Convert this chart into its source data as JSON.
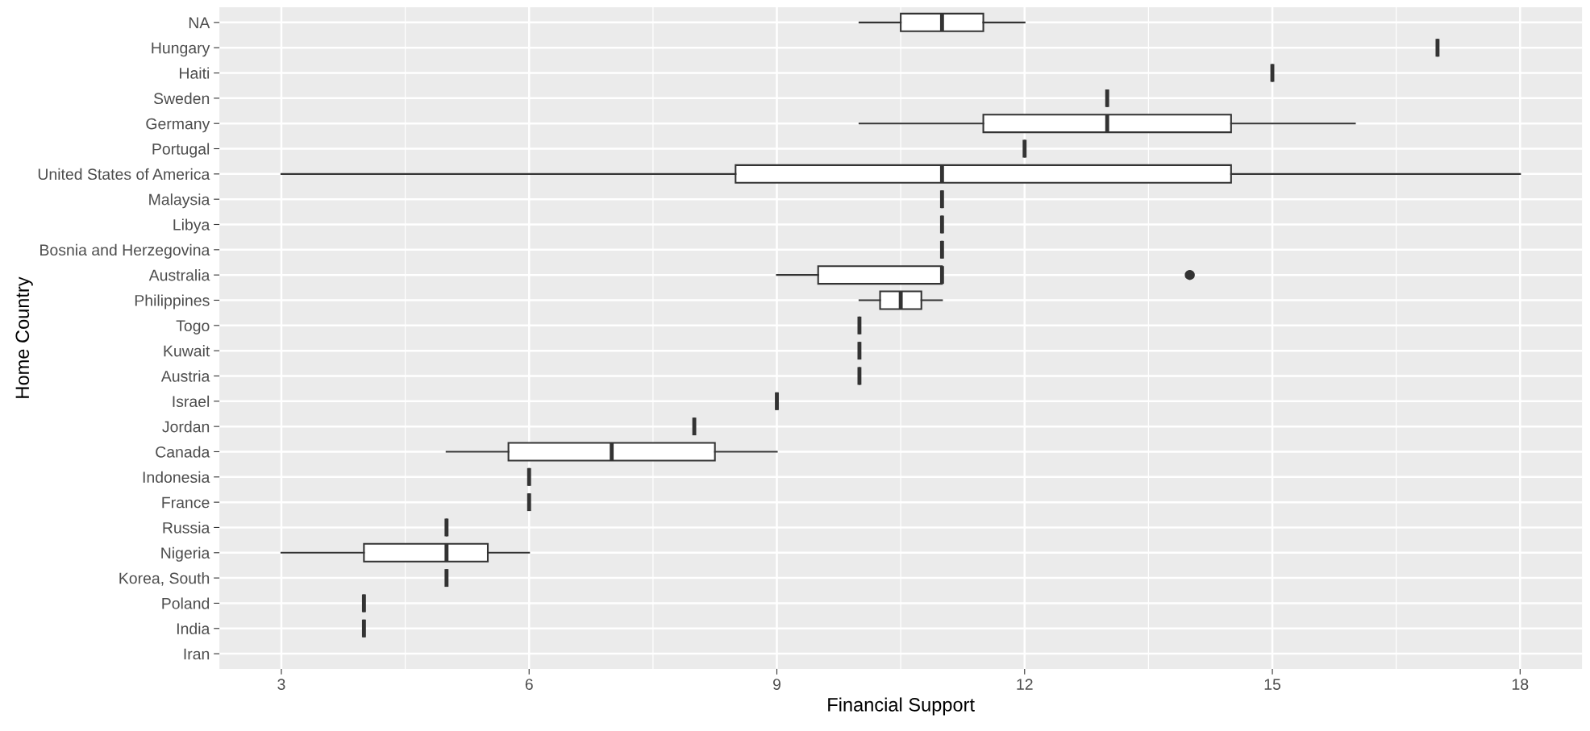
{
  "chart_data": {
    "type": "box",
    "orientation": "horizontal",
    "xlabel": "Financial Support",
    "ylabel": "Home Country",
    "categories": [
      "NA",
      "Hungary",
      "Haiti",
      "Sweden",
      "Germany",
      "Portugal",
      "United States of America",
      "Malaysia",
      "Libya",
      "Bosnia and Herzegovina",
      "Australia",
      "Philippines",
      "Togo",
      "Kuwait",
      "Austria",
      "Israel",
      "Jordan",
      "Canada",
      "Indonesia",
      "France",
      "Russia",
      "Nigeria",
      "Korea, South",
      "Poland",
      "India",
      "Iran"
    ],
    "boxes": [
      {
        "low": 10,
        "q1": 10.5,
        "median": 11,
        "q3": 11.5,
        "high": 12
      },
      {
        "low": 17,
        "q1": 17,
        "median": 17,
        "q3": 17,
        "high": 17
      },
      {
        "low": 15,
        "q1": 15,
        "median": 15,
        "q3": 15,
        "high": 15
      },
      {
        "low": 13,
        "q1": 13,
        "median": 13,
        "q3": 13,
        "high": 13
      },
      {
        "low": 10,
        "q1": 11.5,
        "median": 13,
        "q3": 14.5,
        "high": 16
      },
      {
        "low": 12,
        "q1": 12,
        "median": 12,
        "q3": 12,
        "high": 12
      },
      {
        "low": 3,
        "q1": 8.5,
        "median": 11,
        "q3": 14.5,
        "high": 18
      },
      {
        "low": 11,
        "q1": 11,
        "median": 11,
        "q3": 11,
        "high": 11
      },
      {
        "low": 11,
        "q1": 11,
        "median": 11,
        "q3": 11,
        "high": 11
      },
      {
        "low": 11,
        "q1": 11,
        "median": 11,
        "q3": 11,
        "high": 11
      },
      {
        "low": 9,
        "q1": 9.5,
        "median": 11,
        "q3": 11,
        "high": 11,
        "outliers": [
          14
        ]
      },
      {
        "low": 10,
        "q1": 10.25,
        "median": 10.5,
        "q3": 10.75,
        "high": 11
      },
      {
        "low": 10,
        "q1": 10,
        "median": 10,
        "q3": 10,
        "high": 10
      },
      {
        "low": 10,
        "q1": 10,
        "median": 10,
        "q3": 10,
        "high": 10
      },
      {
        "low": 10,
        "q1": 10,
        "median": 10,
        "q3": 10,
        "high": 10
      },
      {
        "low": 9,
        "q1": 9,
        "median": 9,
        "q3": 9,
        "high": 9
      },
      {
        "low": 8,
        "q1": 8,
        "median": 8,
        "q3": 8,
        "high": 8
      },
      {
        "low": 5,
        "q1": 5.75,
        "median": 7,
        "q3": 8.25,
        "high": 9
      },
      {
        "low": 6,
        "q1": 6,
        "median": 6,
        "q3": 6,
        "high": 6
      },
      {
        "low": 6,
        "q1": 6,
        "median": 6,
        "q3": 6,
        "high": 6
      },
      {
        "low": 5,
        "q1": 5,
        "median": 5,
        "q3": 5,
        "high": 5
      },
      {
        "low": 3,
        "q1": 4,
        "median": 5,
        "q3": 5.5,
        "high": 6
      },
      {
        "low": 5,
        "q1": 5,
        "median": 5,
        "q3": 5,
        "high": 5
      },
      {
        "low": 4,
        "q1": 4,
        "median": 4,
        "q3": 4,
        "high": 4
      },
      {
        "low": 4,
        "q1": 4,
        "median": 4,
        "q3": 4,
        "high": 4
      },
      null
    ],
    "xlim": [
      2.25,
      18.75
    ],
    "xticks": [
      3,
      6,
      9,
      12,
      15,
      18
    ],
    "grid": true,
    "color": "#333333"
  }
}
